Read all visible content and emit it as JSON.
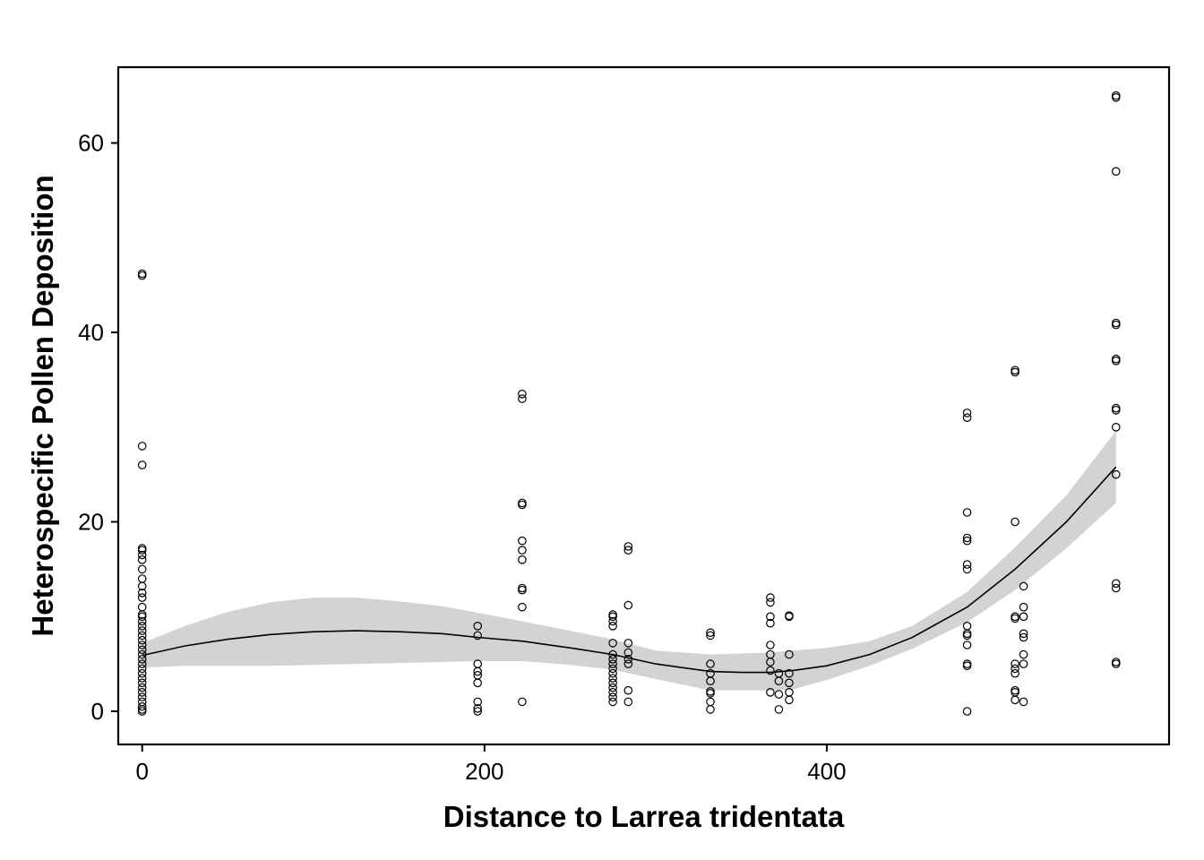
{
  "chart_data": {
    "type": "scatter",
    "title": "",
    "xlabel": "Distance to Larrea tridentata",
    "ylabel": "Heterospecific Pollen Deposition",
    "xlim": [
      -14,
      600
    ],
    "ylim": [
      -3.5,
      68
    ],
    "x_ticks": [
      0,
      200,
      400
    ],
    "y_ticks": [
      0,
      20,
      40,
      60
    ],
    "grid": false,
    "legend": "none",
    "colors": {
      "point": "#000000",
      "line": "#000000",
      "band": "#d3d3d3",
      "frame": "#000000"
    },
    "points": [
      [
        0,
        46
      ],
      [
        0,
        46.2
      ],
      [
        0,
        28
      ],
      [
        0,
        26
      ],
      [
        0,
        17.2
      ],
      [
        0,
        17
      ],
      [
        0,
        16.5
      ],
      [
        0,
        16
      ],
      [
        0,
        15
      ],
      [
        0,
        14
      ],
      [
        0,
        13.2
      ],
      [
        0,
        12.5
      ],
      [
        0,
        12
      ],
      [
        0,
        11
      ],
      [
        0,
        10.2
      ],
      [
        0,
        10
      ],
      [
        0,
        9.5
      ],
      [
        0,
        9
      ],
      [
        0,
        8.5
      ],
      [
        0,
        8
      ],
      [
        0,
        7.5
      ],
      [
        0,
        7
      ],
      [
        0,
        6.5
      ],
      [
        0,
        6
      ],
      [
        0,
        5.5
      ],
      [
        0,
        5
      ],
      [
        0,
        4.5
      ],
      [
        0,
        4
      ],
      [
        0,
        3.5
      ],
      [
        0,
        3
      ],
      [
        0,
        2.5
      ],
      [
        0,
        2
      ],
      [
        0,
        1.5
      ],
      [
        0,
        1
      ],
      [
        0,
        0.5
      ],
      [
        0,
        0.2
      ],
      [
        0,
        0
      ],
      [
        196,
        9
      ],
      [
        196,
        8
      ],
      [
        196,
        5
      ],
      [
        196,
        4.2
      ],
      [
        196,
        3.8
      ],
      [
        196,
        3
      ],
      [
        196,
        1
      ],
      [
        196,
        0.3
      ],
      [
        196,
        0
      ],
      [
        222,
        33.5
      ],
      [
        222,
        33
      ],
      [
        222,
        22
      ],
      [
        222,
        21.8
      ],
      [
        222,
        18
      ],
      [
        222,
        17
      ],
      [
        222,
        16
      ],
      [
        222,
        13
      ],
      [
        222,
        12.8
      ],
      [
        222,
        11
      ],
      [
        222,
        1
      ],
      [
        275,
        10.2
      ],
      [
        275,
        10
      ],
      [
        275,
        9.5
      ],
      [
        275,
        9
      ],
      [
        275,
        7.2
      ],
      [
        275,
        6
      ],
      [
        275,
        5.5
      ],
      [
        275,
        5
      ],
      [
        275,
        4.5
      ],
      [
        275,
        4
      ],
      [
        275,
        3.5
      ],
      [
        275,
        3
      ],
      [
        275,
        2.5
      ],
      [
        275,
        2
      ],
      [
        275,
        1.5
      ],
      [
        275,
        1
      ],
      [
        284,
        17.4
      ],
      [
        284,
        17
      ],
      [
        284,
        11.2
      ],
      [
        284,
        7.2
      ],
      [
        284,
        6.2
      ],
      [
        284,
        5.5
      ],
      [
        284,
        5
      ],
      [
        284,
        2.2
      ],
      [
        284,
        1
      ],
      [
        332,
        8.3
      ],
      [
        332,
        8
      ],
      [
        332,
        5
      ],
      [
        332,
        4
      ],
      [
        332,
        3.2
      ],
      [
        332,
        2.1
      ],
      [
        332,
        1.9
      ],
      [
        332,
        1
      ],
      [
        332,
        0.2
      ],
      [
        367,
        12
      ],
      [
        367,
        11.5
      ],
      [
        367,
        10
      ],
      [
        367,
        9.3
      ],
      [
        367,
        7
      ],
      [
        367,
        6
      ],
      [
        367,
        5.2
      ],
      [
        367,
        4.3
      ],
      [
        367,
        2
      ],
      [
        372,
        4
      ],
      [
        372,
        3.2
      ],
      [
        372,
        1.8
      ],
      [
        372,
        0.2
      ],
      [
        378,
        10.1
      ],
      [
        378,
        10
      ],
      [
        378,
        6
      ],
      [
        378,
        4
      ],
      [
        378,
        3
      ],
      [
        378,
        2
      ],
      [
        378,
        1.2
      ],
      [
        482,
        31.5
      ],
      [
        482,
        31
      ],
      [
        482,
        21
      ],
      [
        482,
        18.3
      ],
      [
        482,
        18
      ],
      [
        482,
        15.5
      ],
      [
        482,
        15
      ],
      [
        482,
        9
      ],
      [
        482,
        8.2
      ],
      [
        482,
        8
      ],
      [
        482,
        7
      ],
      [
        482,
        5
      ],
      [
        482,
        4.8
      ],
      [
        482,
        0
      ],
      [
        510,
        36
      ],
      [
        510,
        35.8
      ],
      [
        510,
        20
      ],
      [
        510,
        10
      ],
      [
        510,
        9.8
      ],
      [
        510,
        5
      ],
      [
        510,
        4.5
      ],
      [
        510,
        4
      ],
      [
        510,
        2.2
      ],
      [
        510,
        2
      ],
      [
        510,
        1.2
      ],
      [
        515,
        13.2
      ],
      [
        515,
        11
      ],
      [
        515,
        10
      ],
      [
        515,
        8.2
      ],
      [
        515,
        7.8
      ],
      [
        515,
        6
      ],
      [
        515,
        5
      ],
      [
        515,
        1
      ],
      [
        569,
        65
      ],
      [
        569,
        64.8
      ],
      [
        569,
        57
      ],
      [
        569,
        41
      ],
      [
        569,
        40.8
      ],
      [
        569,
        37.2
      ],
      [
        569,
        37
      ],
      [
        569,
        32
      ],
      [
        569,
        31.8
      ],
      [
        569,
        30
      ],
      [
        569,
        25
      ],
      [
        569,
        13.5
      ],
      [
        569,
        13
      ],
      [
        569,
        5.2
      ],
      [
        569,
        5
      ]
    ],
    "smooth_fit": {
      "x": [
        0,
        25,
        50,
        75,
        100,
        125,
        150,
        175,
        196,
        222,
        250,
        275,
        300,
        332,
        350,
        367,
        380,
        400,
        425,
        450,
        482,
        510,
        540,
        569
      ],
      "y": [
        5.9,
        6.9,
        7.6,
        8.1,
        8.4,
        8.5,
        8.4,
        8.2,
        7.8,
        7.4,
        6.7,
        6.0,
        5.0,
        4.2,
        4.1,
        4.1,
        4.3,
        4.8,
        6.0,
        7.8,
        11.0,
        15.0,
        20.0,
        25.8
      ],
      "lower": [
        4.6,
        4.8,
        4.8,
        4.8,
        4.9,
        5.0,
        5.1,
        5.2,
        5.3,
        5.3,
        4.9,
        4.4,
        3.4,
        2.2,
        2.2,
        2.2,
        2.3,
        3.3,
        4.8,
        6.6,
        9.4,
        12.8,
        17.2,
        22.0
      ],
      "upper": [
        7.2,
        9.0,
        10.5,
        11.5,
        12.0,
        12.0,
        11.6,
        11.1,
        10.4,
        9.5,
        8.5,
        7.6,
        6.4,
        6.0,
        6.1,
        6.2,
        6.4,
        6.7,
        7.4,
        9.0,
        12.6,
        17.3,
        22.8,
        29.6
      ]
    }
  }
}
